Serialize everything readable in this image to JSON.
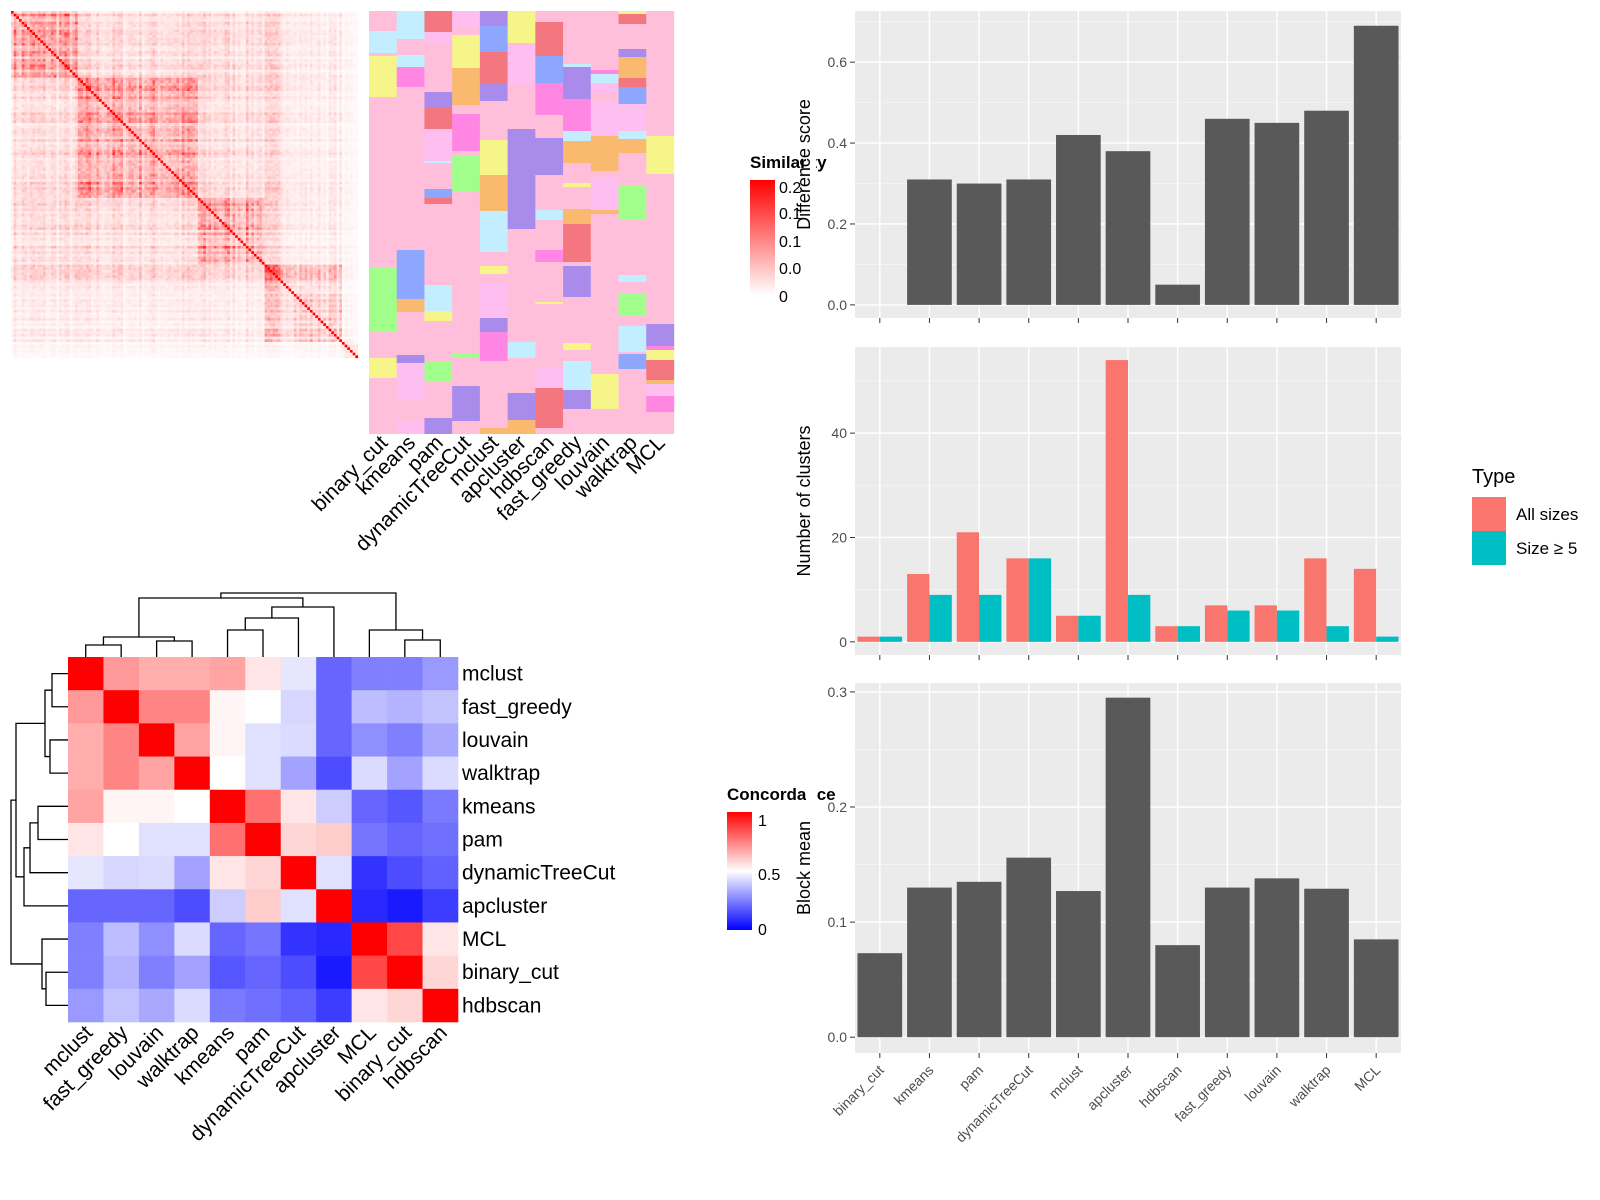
{
  "methods_order_bars": [
    "binary_cut",
    "kmeans",
    "pam",
    "dynamicTreeCut",
    "mclust",
    "apcluster",
    "hdbscan",
    "fast_greedy",
    "louvain",
    "walktrap",
    "MCL"
  ],
  "colors": {
    "bar_dark": "#595959",
    "all_sizes": "#F8766D",
    "size_ge5": "#00BFC4",
    "panel_bg": "#EBEBEB",
    "grid": "#FFFFFF",
    "sim_high": "#FF0000",
    "concordance_high": "#FF0000",
    "concordance_mid": "#FFFFFF",
    "concordance_low": "#0000FF"
  },
  "similarity_heatmap": {
    "legend_title": "Similarity",
    "legend_ticks": [
      "0.2",
      "0.1",
      "0.1",
      "0.0",
      "0"
    ],
    "column_labels": [
      "binary_cut",
      "kmeans",
      "pam",
      "dynamicTreeCut",
      "mclust",
      "apcluster",
      "hdbscan",
      "fast_greedy",
      "louvain",
      "walktrap",
      "MCL"
    ]
  },
  "concordance_heatmap": {
    "legend_title": "Concordance",
    "legend_ticks": [
      "1",
      "0.5",
      "0"
    ],
    "row_labels": [
      "mclust",
      "fast_greedy",
      "louvain",
      "walktrap",
      "kmeans",
      "pam",
      "dynamicTreeCut",
      "apcluster",
      "MCL",
      "binary_cut",
      "hdbscan"
    ],
    "column_labels": [
      "mclust",
      "fast_greedy",
      "louvain",
      "walktrap",
      "kmeans",
      "pam",
      "dynamicTreeCut",
      "apcluster",
      "MCL",
      "binary_cut",
      "hdbscan"
    ],
    "matrix": [
      [
        1.0,
        0.7,
        0.66,
        0.66,
        0.68,
        0.55,
        0.45,
        0.2,
        0.25,
        0.25,
        0.3
      ],
      [
        0.7,
        1.0,
        0.74,
        0.74,
        0.52,
        0.5,
        0.42,
        0.2,
        0.37,
        0.35,
        0.38
      ],
      [
        0.66,
        0.74,
        1.0,
        0.68,
        0.52,
        0.44,
        0.43,
        0.2,
        0.28,
        0.25,
        0.33
      ],
      [
        0.66,
        0.74,
        0.68,
        1.0,
        0.5,
        0.44,
        0.32,
        0.15,
        0.43,
        0.32,
        0.43
      ],
      [
        0.68,
        0.52,
        0.52,
        0.5,
        1.0,
        0.78,
        0.55,
        0.4,
        0.2,
        0.17,
        0.24
      ],
      [
        0.55,
        0.5,
        0.44,
        0.44,
        0.78,
        1.0,
        0.58,
        0.6,
        0.23,
        0.2,
        0.22
      ],
      [
        0.45,
        0.42,
        0.43,
        0.32,
        0.55,
        0.58,
        1.0,
        0.44,
        0.1,
        0.15,
        0.19
      ],
      [
        0.2,
        0.2,
        0.2,
        0.15,
        0.4,
        0.6,
        0.44,
        1.0,
        0.08,
        0.05,
        0.12
      ],
      [
        0.25,
        0.37,
        0.28,
        0.43,
        0.2,
        0.23,
        0.1,
        0.08,
        1.0,
        0.86,
        0.55
      ],
      [
        0.25,
        0.35,
        0.25,
        0.32,
        0.17,
        0.2,
        0.15,
        0.05,
        0.86,
        1.0,
        0.58
      ],
      [
        0.3,
        0.38,
        0.33,
        0.43,
        0.24,
        0.22,
        0.19,
        0.12,
        0.55,
        0.58,
        1.0
      ]
    ]
  },
  "chart_data": [
    {
      "type": "bar",
      "categories": [
        "binary_cut",
        "kmeans",
        "pam",
        "dynamicTreeCut",
        "mclust",
        "apcluster",
        "hdbscan",
        "fast_greedy",
        "louvain",
        "walktrap",
        "MCL"
      ],
      "values": [
        0.0,
        0.31,
        0.3,
        0.31,
        0.42,
        0.38,
        0.05,
        0.46,
        0.45,
        0.48,
        0.69
      ],
      "ylabel": "Difference score",
      "ylim": [
        0,
        0.72
      ],
      "yticks": [
        "0.0",
        "0.2",
        "0.4",
        "0.6"
      ],
      "grid": true
    },
    {
      "type": "bar",
      "categories": [
        "binary_cut",
        "kmeans",
        "pam",
        "dynamicTreeCut",
        "mclust",
        "apcluster",
        "hdbscan",
        "fast_greedy",
        "louvain",
        "walktrap",
        "MCL"
      ],
      "series": [
        {
          "name": "All sizes",
          "values": [
            1,
            13,
            21,
            16,
            5,
            54,
            3,
            7,
            7,
            16,
            14
          ]
        },
        {
          "name": "Size ≥ 5",
          "values": [
            1,
            9,
            9,
            16,
            5,
            9,
            3,
            6,
            6,
            3,
            1
          ]
        }
      ],
      "ylabel": "Number of clusters",
      "ylim": [
        0,
        56
      ],
      "yticks": [
        "0",
        "20",
        "40"
      ],
      "legend_title": "Type",
      "legend_position": "right",
      "grid": true
    },
    {
      "type": "bar",
      "categories": [
        "binary_cut",
        "kmeans",
        "pam",
        "dynamicTreeCut",
        "mclust",
        "apcluster",
        "hdbscan",
        "fast_greedy",
        "louvain",
        "walktrap",
        "MCL"
      ],
      "values": [
        0.073,
        0.13,
        0.135,
        0.156,
        0.127,
        0.295,
        0.08,
        0.13,
        0.138,
        0.129,
        0.085
      ],
      "ylabel": "Block mean",
      "ylim": [
        0,
        0.305
      ],
      "yticks": [
        "0.0",
        "0.1",
        "0.2",
        "0.3"
      ],
      "grid": true
    }
  ]
}
